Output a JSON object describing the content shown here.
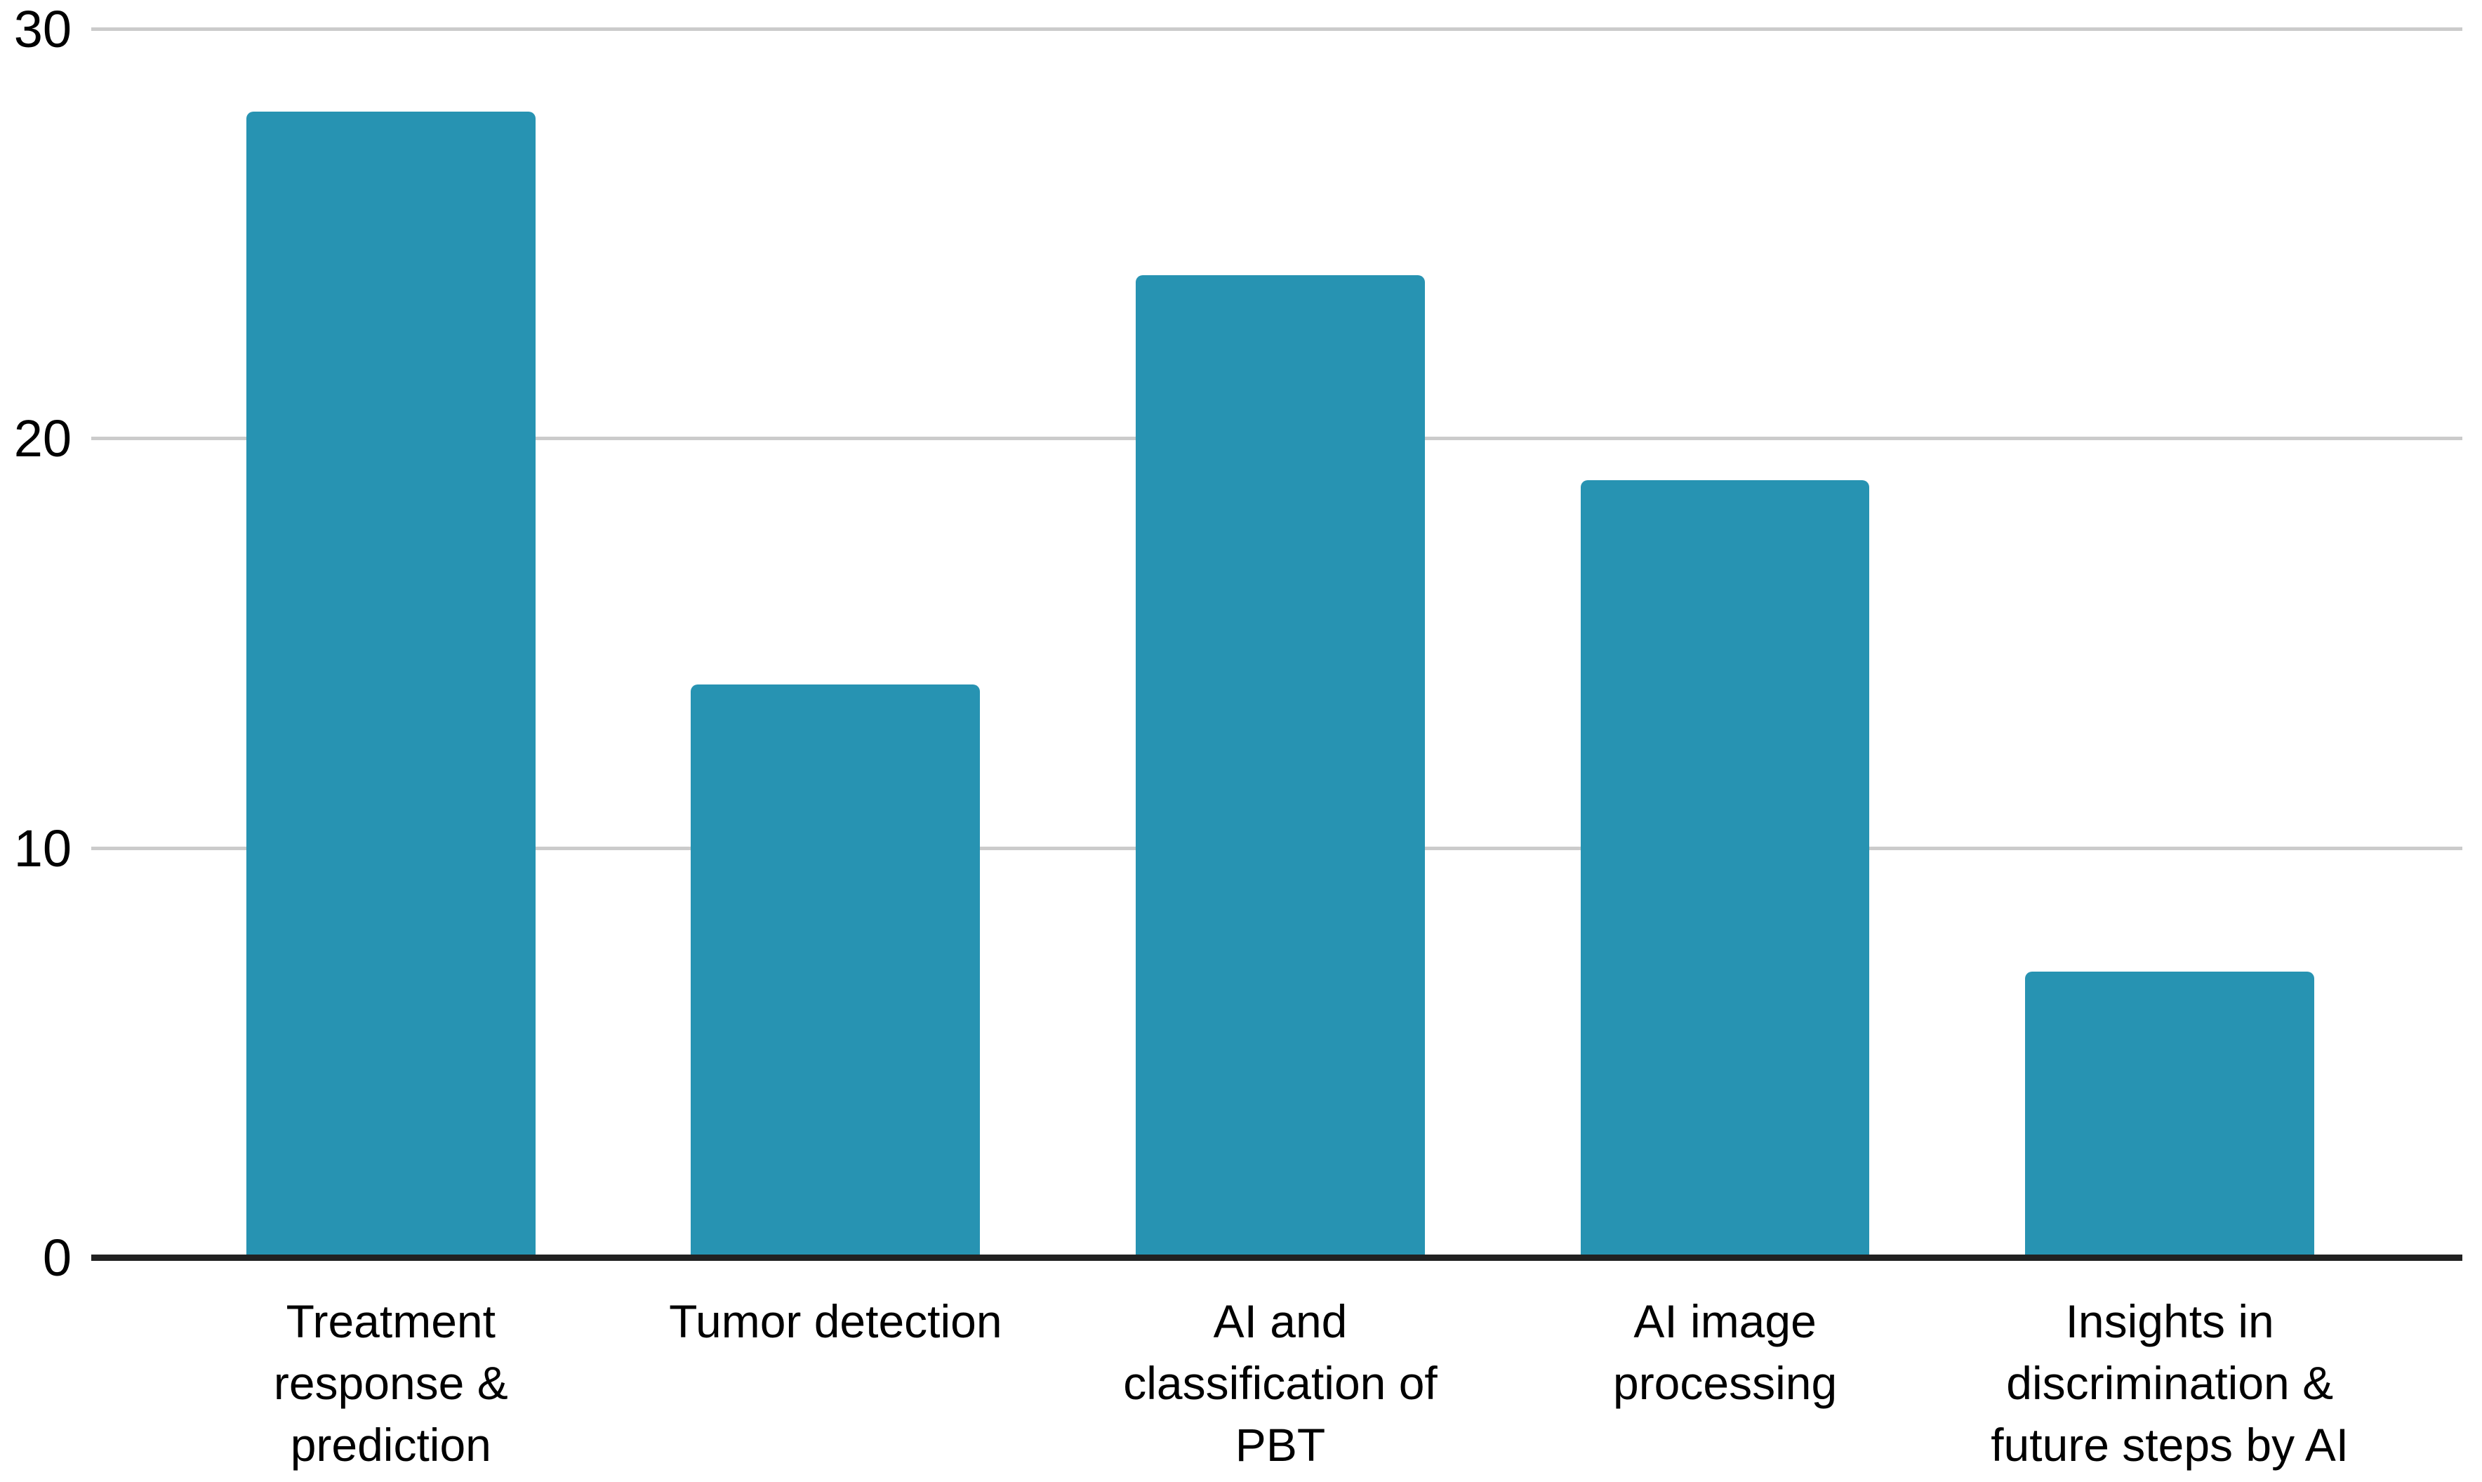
{
  "chart_data": {
    "type": "bar",
    "title": "",
    "xlabel": "",
    "ylabel": "",
    "categories": [
      "Treatment response & prediction",
      "Tumor detection",
      "AI and classification of PBT",
      "AI image processing",
      "Insights in discrimination & future steps by AI"
    ],
    "category_lines": [
      [
        "Treatment",
        "response &",
        "prediction"
      ],
      [
        "Tumor detection"
      ],
      [
        "AI and",
        "classification of",
        "PBT"
      ],
      [
        "AI image",
        "processing"
      ],
      [
        "Insights in",
        "discrimination &",
        "future steps by AI"
      ]
    ],
    "values": [
      28,
      14,
      24,
      19,
      7
    ],
    "ylim": [
      0,
      30
    ],
    "yticks": [
      0,
      10,
      20,
      30
    ],
    "grid": true,
    "legend": false,
    "colors": {
      "bar": "#2793b2",
      "gridline": "#cbcbcb",
      "axis": "#212121",
      "tick_text": "#000000",
      "background": "#ffffff"
    }
  }
}
